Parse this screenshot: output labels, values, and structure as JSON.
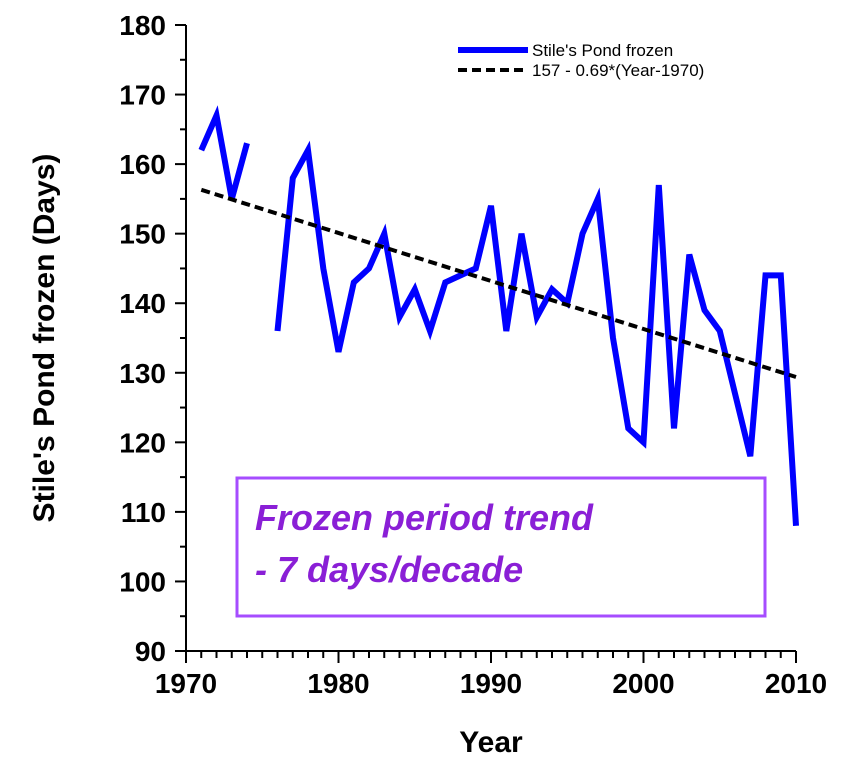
{
  "chart_data": {
    "type": "line",
    "xlabel": "Year",
    "ylabel": "Stile's Pond frozen (Days)",
    "xlim": [
      1970,
      2010
    ],
    "ylim": [
      90,
      180
    ],
    "x_ticks": [
      "1970",
      "1980",
      "1990",
      "2000",
      "2010"
    ],
    "y_ticks": [
      "90",
      "100",
      "110",
      "120",
      "130",
      "140",
      "150",
      "160",
      "170",
      "180"
    ],
    "grid": false,
    "legend_position": "top-right",
    "series": [
      {
        "name": "Stile's Pond frozen",
        "color": "#0000ff",
        "style": "solid",
        "segments": [
          [
            [
              1971,
              162
            ],
            [
              1972,
              167
            ],
            [
              1973,
              155
            ],
            [
              1974,
              163
            ]
          ],
          [
            [
              1976,
              136
            ],
            [
              1977,
              158
            ],
            [
              1978,
              162
            ],
            [
              1979,
              145
            ],
            [
              1980,
              133
            ],
            [
              1981,
              143
            ],
            [
              1982,
              145
            ],
            [
              1983,
              150
            ],
            [
              1984,
              138
            ],
            [
              1985,
              142
            ],
            [
              1986,
              136
            ],
            [
              1987,
              143
            ],
            [
              1988,
              144
            ],
            [
              1989,
              145
            ],
            [
              1990,
              154
            ],
            [
              1991,
              136
            ],
            [
              1992,
              150
            ],
            [
              1993,
              138
            ],
            [
              1994,
              142
            ],
            [
              1995,
              140
            ],
            [
              1996,
              150
            ],
            [
              1997,
              155
            ],
            [
              1998,
              135
            ],
            [
              1999,
              122
            ],
            [
              2000,
              120
            ],
            [
              2001,
              157
            ],
            [
              2002,
              122
            ],
            [
              2003,
              147
            ],
            [
              2004,
              139
            ],
            [
              2005,
              136
            ],
            [
              2006,
              127
            ],
            [
              2007,
              118
            ],
            [
              2008,
              144
            ],
            [
              2009,
              144
            ],
            [
              2010,
              108
            ]
          ]
        ]
      },
      {
        "name": "157 - 0.69*(Year-1970)",
        "color": "#000000",
        "style": "dashed",
        "segments": [
          [
            [
              1971,
              156.31
            ],
            [
              2010,
              129.4
            ]
          ]
        ]
      }
    ],
    "annotation": {
      "lines": [
        "Frozen period trend",
        "- 7 days/decade"
      ],
      "color": "#8a1fd6",
      "border_color": "#a64dff"
    }
  }
}
